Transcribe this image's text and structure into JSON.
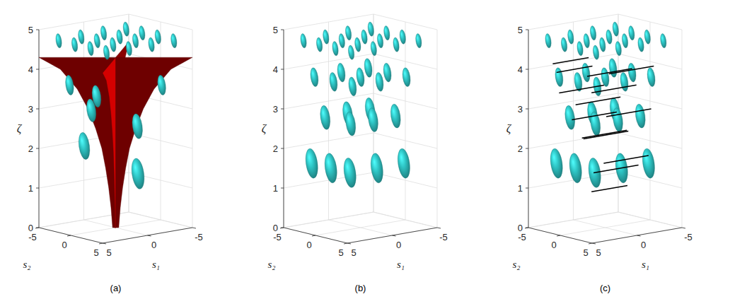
{
  "chart_data": [
    {
      "type": "glyph3d",
      "title": "(a)",
      "xlabel": "s₁",
      "ylabel": "s₂",
      "zlabel": "ζ",
      "xlim": [
        -5,
        5
      ],
      "xticks": [
        -5,
        0,
        5
      ],
      "ylim": [
        -5,
        5
      ],
      "yticks": [
        -5,
        0,
        5
      ],
      "zlim": [
        0,
        5
      ],
      "zticks": [
        0,
        1,
        2,
        3,
        4,
        5
      ],
      "grid": true,
      "color": "#2ec4c4",
      "glyphs": {
        "s1": [
          -4,
          -4,
          -4,
          -4,
          -1.5,
          -1.5,
          -1.5,
          -1.5,
          1,
          1,
          1,
          1,
          3.5,
          3.5,
          3.5,
          3.5,
          3,
          -3,
          0,
          2,
          -1,
          3.5,
          0
        ],
        "s2": [
          -4,
          -1.5,
          1,
          3.5,
          -4,
          -1.5,
          1,
          3.5,
          -4,
          -1.5,
          1,
          3.5,
          -4,
          -1.5,
          1,
          3.5,
          -3,
          3,
          -3,
          -1,
          2,
          0,
          3.5
        ],
        "zeta": [
          4.7,
          4.7,
          4.7,
          4.7,
          4.7,
          4.7,
          4.7,
          4.7,
          4.7,
          4.7,
          4.7,
          4.7,
          4.7,
          4.7,
          4.7,
          4.7,
          3.6,
          3.6,
          3.2,
          3.0,
          2.6,
          2.2,
          1.5
        ]
      },
      "surface_profile": {
        "zeta": [
          0,
          0.5,
          1,
          1.5,
          2,
          2.5,
          3,
          3.5,
          4,
          4.3
        ],
        "half_width": [
          0.2,
          0.3,
          0.45,
          0.65,
          0.9,
          1.3,
          1.8,
          2.5,
          3.6,
          5
        ]
      }
    },
    {
      "type": "glyph3d",
      "title": "(b)",
      "xlabel": "s₁",
      "ylabel": "s₂",
      "zlabel": "ζ",
      "xlim": [
        -5,
        5
      ],
      "xticks": [
        -5,
        0,
        5
      ],
      "ylim": [
        -5,
        5
      ],
      "yticks": [
        -5,
        0,
        5
      ],
      "zlim": [
        0,
        5
      ],
      "zticks": [
        0,
        1,
        2,
        3,
        4,
        5
      ],
      "grid": true,
      "color": "#2ec4c4",
      "glyphs": {
        "s1": [
          -4,
          -4,
          -4,
          -4,
          -1.5,
          -1.5,
          -1.5,
          -1.5,
          1,
          1,
          1,
          1,
          3.5,
          3.5,
          3.5,
          3.5,
          -3,
          -3,
          -3,
          0,
          0,
          0,
          3,
          3,
          3,
          -2.5,
          0,
          2.5,
          -2.5,
          0,
          2.5,
          4,
          4,
          4,
          1,
          -2
        ],
        "s2": [
          -4,
          -1.5,
          1,
          3.5,
          -4,
          -1.5,
          1,
          3.5,
          -4,
          -1.5,
          1,
          3.5,
          -4,
          -1.5,
          1,
          3.5,
          -3,
          0,
          3,
          -3,
          0,
          3,
          -3,
          0,
          3,
          -2,
          -2,
          -2,
          2,
          2,
          2,
          -2,
          1,
          4,
          4,
          4
        ],
        "zeta": [
          4.7,
          4.7,
          4.7,
          4.7,
          4.7,
          4.7,
          4.7,
          4.7,
          4.7,
          4.7,
          4.7,
          4.7,
          4.7,
          4.7,
          4.7,
          4.7,
          3.8,
          3.8,
          3.8,
          3.8,
          3.8,
          3.8,
          3.8,
          3.8,
          3.8,
          2.8,
          2.8,
          2.8,
          2.8,
          2.8,
          2.8,
          1.7,
          1.7,
          1.7,
          1.7,
          1.7
        ]
      }
    },
    {
      "type": "glyph3d",
      "title": "(c)",
      "xlabel": "s₁",
      "ylabel": "s₂",
      "zlabel": "ζ",
      "xlim": [
        -5,
        5
      ],
      "xticks": [
        -5,
        0,
        5
      ],
      "ylim": [
        -5,
        5
      ],
      "yticks": [
        -5,
        0,
        5
      ],
      "zlim": [
        0,
        5
      ],
      "zticks": [
        0,
        1,
        2,
        3,
        4,
        5
      ],
      "grid": true,
      "color": "#2ec4c4",
      "glyphs": {
        "s1": [
          -4,
          -4,
          -4,
          -4,
          -1.5,
          -1.5,
          -1.5,
          -1.5,
          1,
          1,
          1,
          1,
          3.5,
          3.5,
          3.5,
          3.5,
          -3,
          -3,
          -3,
          0,
          0,
          0,
          3,
          3,
          3,
          -2.5,
          0,
          2.5,
          -2.5,
          0,
          2.5,
          4,
          4,
          4,
          1,
          -2
        ],
        "s2": [
          -4,
          -1.5,
          1,
          3.5,
          -4,
          -1.5,
          1,
          3.5,
          -4,
          -1.5,
          1,
          3.5,
          -4,
          -1.5,
          1,
          3.5,
          -3,
          0,
          3,
          -3,
          0,
          3,
          -3,
          0,
          3,
          -2,
          -2,
          -2,
          2,
          2,
          2,
          -2,
          1,
          4,
          4,
          4
        ],
        "zeta": [
          4.7,
          4.7,
          4.7,
          4.7,
          4.7,
          4.7,
          4.7,
          4.7,
          4.7,
          4.7,
          4.7,
          4.7,
          4.7,
          4.7,
          4.7,
          4.7,
          3.8,
          3.8,
          3.8,
          3.8,
          3.8,
          3.8,
          3.8,
          3.8,
          3.8,
          2.8,
          2.8,
          2.8,
          2.8,
          2.8,
          2.8,
          1.7,
          1.7,
          1.7,
          1.7,
          1.7
        ]
      },
      "segments": {
        "s2": [
          -4,
          -2,
          0,
          2,
          3.5,
          -3,
          1,
          3,
          -1,
          2,
          -2,
          4,
          1,
          3.5
        ],
        "zeta": [
          4.1,
          4.0,
          3.9,
          4.0,
          3.7,
          3.4,
          3.3,
          3.0,
          2.8,
          2.5,
          2.2,
          1.9,
          1.5,
          1.2
        ],
        "s1_start": [
          3,
          4,
          2,
          1,
          4,
          3,
          4,
          2,
          3,
          4,
          1,
          3,
          2,
          4
        ],
        "s1_end": [
          -1,
          0,
          -3,
          -4,
          -1,
          -2,
          -1,
          -3,
          -2,
          -1,
          -4,
          -2,
          -3,
          0
        ]
      }
    }
  ]
}
